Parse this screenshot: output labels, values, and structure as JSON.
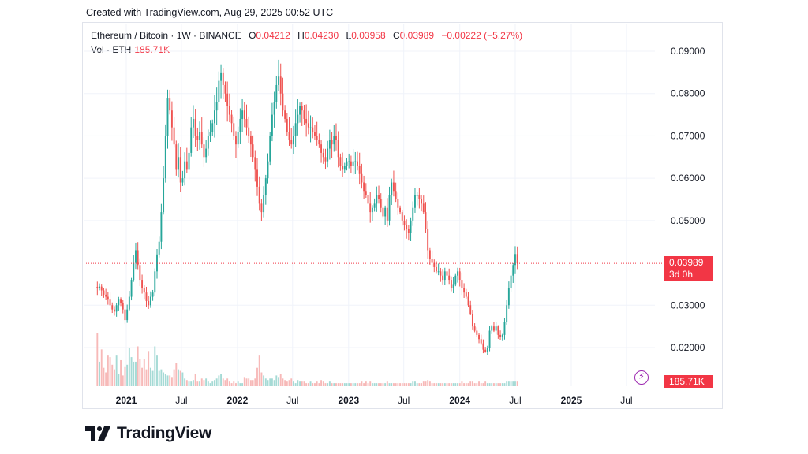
{
  "header": {
    "created": "Created with TradingView.com, Aug 29, 2025 00:52 UTC"
  },
  "legend": {
    "symbol": "Ethereum / Bitcoin · 1W · BINANCE",
    "o_label": "O",
    "o_value": "0.04212",
    "h_label": "H",
    "h_value": "0.04230",
    "l_label": "L",
    "l_value": "0.03958",
    "c_label": "C",
    "c_value": "0.03989",
    "change": "−0.00222 (−5.27%)",
    "vol_label": "Vol · ETH",
    "vol_value": "185.71K"
  },
  "price_tag": {
    "price": "0.03989",
    "countdown": "3d 0h"
  },
  "volume_tag": "185.71K",
  "brand": {
    "name": "TradingView",
    "logo_icon": "tradingview-logo-icon"
  },
  "flash_icon": "lightning-icon",
  "colors": {
    "up": "#26a69a",
    "down": "#ef5350",
    "up_vol": "#a5dad5",
    "down_vol": "#f7b9b8",
    "price_line": "#f23645",
    "grid": "#f0f3fa",
    "axis_text": "#131722"
  },
  "chart_data": {
    "type": "candlestick",
    "title": "Ethereum / Bitcoin · 1W · BINANCE",
    "interval": "1W",
    "xlabel": "",
    "ylabel": "",
    "ylim": [
      0.016,
      0.094
    ],
    "y_ticks": [
      "0.09000",
      "0.08000",
      "0.07000",
      "0.06000",
      "0.05000",
      "0.03000",
      "0.02000"
    ],
    "x_ticks": [
      {
        "label": "2021",
        "date": "2021-01-01"
      },
      {
        "label": "Jul",
        "date": "2021-07-01"
      },
      {
        "label": "2022",
        "date": "2022-01-01"
      },
      {
        "label": "Jul",
        "date": "2022-07-01"
      },
      {
        "label": "2023",
        "date": "2023-01-01"
      },
      {
        "label": "Jul",
        "date": "2023-07-01"
      },
      {
        "label": "2024",
        "date": "2024-01-01"
      },
      {
        "label": "Jul",
        "date": "2024-07-01"
      },
      {
        "label": "2025",
        "date": "2025-01-01"
      },
      {
        "label": "Jul",
        "date": "2025-07-01"
      }
    ],
    "start_date": "2020-09-28",
    "last_price": 0.03989,
    "grid": true,
    "close_series": [
      0.034,
      0.0344,
      0.0335,
      0.0325,
      0.032,
      0.0315,
      0.03,
      0.029,
      0.0285,
      0.03,
      0.0315,
      0.0305,
      0.029,
      0.0265,
      0.029,
      0.032,
      0.036,
      0.04,
      0.043,
      0.0395,
      0.036,
      0.034,
      0.033,
      0.031,
      0.03,
      0.032,
      0.033,
      0.038,
      0.042,
      0.045,
      0.052,
      0.06,
      0.07,
      0.079,
      0.076,
      0.072,
      0.068,
      0.062,
      0.065,
      0.059,
      0.06,
      0.064,
      0.062,
      0.066,
      0.072,
      0.074,
      0.07,
      0.069,
      0.071,
      0.068,
      0.065,
      0.067,
      0.07,
      0.071,
      0.073,
      0.076,
      0.078,
      0.083,
      0.085,
      0.082,
      0.08,
      0.077,
      0.075,
      0.073,
      0.07,
      0.068,
      0.071,
      0.074,
      0.076,
      0.074,
      0.072,
      0.07,
      0.068,
      0.065,
      0.062,
      0.058,
      0.054,
      0.052,
      0.056,
      0.06,
      0.064,
      0.07,
      0.075,
      0.078,
      0.082,
      0.084,
      0.08,
      0.076,
      0.074,
      0.071,
      0.069,
      0.068,
      0.07,
      0.073,
      0.075,
      0.077,
      0.076,
      0.074,
      0.073,
      0.072,
      0.072,
      0.071,
      0.07,
      0.069,
      0.068,
      0.066,
      0.065,
      0.064,
      0.067,
      0.069,
      0.068,
      0.07,
      0.069,
      0.065,
      0.063,
      0.062,
      0.063,
      0.064,
      0.064,
      0.063,
      0.064,
      0.064,
      0.063,
      0.061,
      0.059,
      0.057,
      0.056,
      0.054,
      0.052,
      0.053,
      0.054,
      0.056,
      0.055,
      0.053,
      0.051,
      0.053,
      0.05,
      0.056,
      0.059,
      0.057,
      0.055,
      0.053,
      0.052,
      0.05,
      0.049,
      0.048,
      0.047,
      0.05,
      0.053,
      0.056,
      0.056,
      0.055,
      0.054,
      0.052,
      0.048,
      0.043,
      0.041,
      0.04,
      0.039,
      0.038,
      0.038,
      0.037,
      0.036,
      0.038,
      0.037,
      0.036,
      0.034,
      0.035,
      0.037,
      0.038,
      0.036,
      0.034,
      0.033,
      0.032,
      0.03,
      0.028,
      0.025,
      0.024,
      0.023,
      0.022,
      0.021,
      0.0195,
      0.019,
      0.02,
      0.024,
      0.025,
      0.024,
      0.025,
      0.023,
      0.0225,
      0.023,
      0.026,
      0.03,
      0.034,
      0.037,
      0.0395,
      0.0421,
      0.03989
    ],
    "volume_series": [
      3.5,
      1.6,
      2.4,
      1.2,
      0.9,
      2.0,
      1.9,
      1.4,
      1.1,
      2.0,
      0.8,
      1.7,
      0.7,
      1.3,
      1.4,
      2.5,
      1.9,
      1.6,
      1.6,
      2.6,
      1.8,
      1.2,
      1.8,
      1.1,
      2.3,
      1.2,
      1.0,
      2.6,
      2.0,
      1.0,
      1.1,
      0.9,
      0.8,
      0.7,
      0.7,
      0.6,
      1.1,
      1.5,
      1.1,
      1.0,
      0.9,
      0.5,
      0.4,
      0.3,
      0.3,
      0.4,
      0.8,
      0.3,
      0.3,
      0.5,
      0.4,
      0.5,
      0.3,
      0.2,
      0.3,
      0.4,
      0.5,
      0.7,
      0.8,
      0.5,
      0.4,
      0.5,
      0.3,
      0.2,
      0.3,
      0.2,
      0.3,
      0.2,
      0.2,
      0.6,
      0.5,
      0.5,
      0.4,
      0.4,
      0.5,
      1.2,
      2.0,
      0.9,
      0.7,
      0.5,
      0.4,
      0.5,
      0.5,
      0.4,
      0.7,
      0.6,
      0.8,
      0.5,
      0.4,
      0.3,
      0.4,
      0.5,
      0.3,
      0.2,
      0.4,
      0.3,
      0.3,
      0.3,
      0.2,
      0.2,
      0.3,
      0.2,
      0.2,
      0.3,
      0.2,
      0.4,
      0.3,
      0.2,
      0.2,
      0.3,
      0.2,
      0.2,
      0.2,
      0.2,
      0.2,
      0.2,
      0.2,
      0.2,
      0.2,
      0.2,
      0.2,
      0.2,
      0.2,
      0.2,
      0.3,
      0.2,
      0.3,
      0.2,
      0.3,
      0.2,
      0.2,
      0.2,
      0.2,
      0.2,
      0.2,
      0.2,
      0.3,
      0.2,
      0.2,
      0.2,
      0.2,
      0.2,
      0.2,
      0.2,
      0.2,
      0.2,
      0.2,
      0.2,
      0.3,
      0.3,
      0.2,
      0.2,
      0.2,
      0.3,
      0.3,
      0.4,
      0.3,
      0.2,
      0.2,
      0.2,
      0.2,
      0.2,
      0.2,
      0.2,
      0.2,
      0.2,
      0.2,
      0.2,
      0.2,
      0.2,
      0.2,
      0.3,
      0.2,
      0.2,
      0.2,
      0.3,
      0.3,
      0.2,
      0.2,
      0.3,
      0.2,
      0.2,
      0.3,
      0.2,
      0.2,
      0.2,
      0.2,
      0.2,
      0.2,
      0.2,
      0.2,
      0.2,
      0.3,
      0.3,
      0.3,
      0.3,
      0.3,
      0.3
    ]
  }
}
